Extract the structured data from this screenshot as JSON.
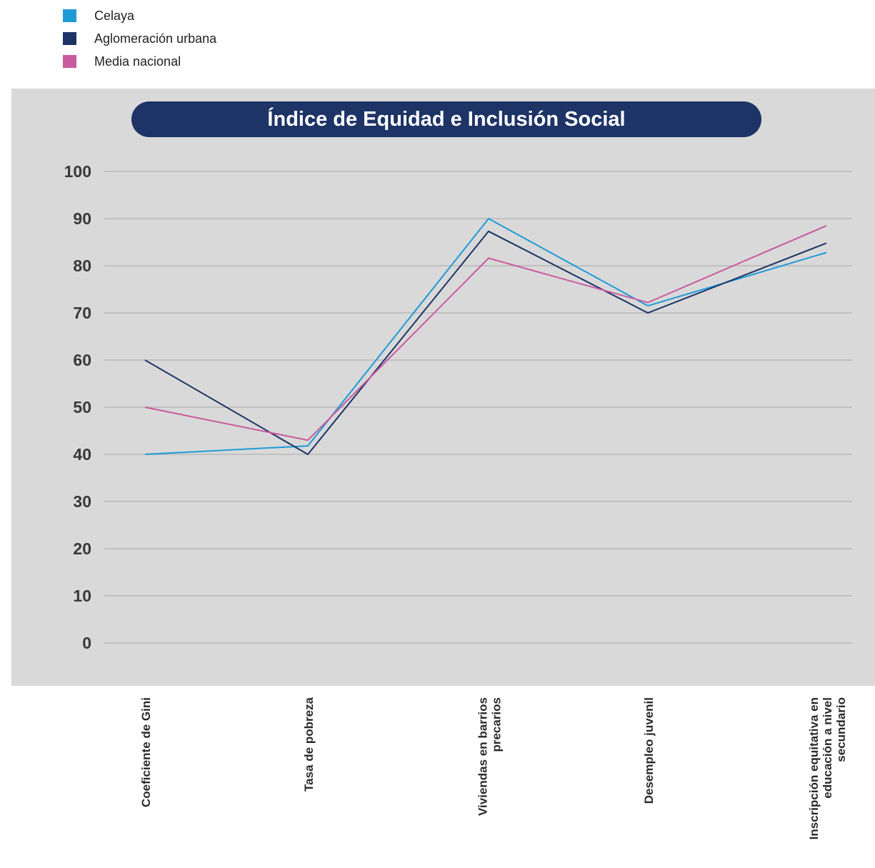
{
  "chart_data": {
    "type": "line",
    "title": "Índice de Equidad e Inclusión Social",
    "categories": [
      [
        "Coeficiente de Gini"
      ],
      [
        "Tasa de pobreza"
      ],
      [
        "Viviendas en barrios",
        "precarios"
      ],
      [
        "Desempleo juvenil"
      ],
      [
        "Inscripción equitativa en",
        "educación a nivel",
        "secundario"
      ]
    ],
    "series": [
      {
        "name": "Celaya",
        "color": "#1e9bd7",
        "values": [
          40,
          41.8,
          90,
          71.5,
          82.8
        ]
      },
      {
        "name": "Aglomeración urbana",
        "color": "#1e3466",
        "values": [
          60,
          40,
          87.3,
          70,
          84.8
        ]
      },
      {
        "name": "Media nacional",
        "color": "#c95a9e",
        "values": [
          50,
          43,
          81.6,
          72.2,
          88.5
        ]
      }
    ],
    "ylim": [
      0,
      100
    ],
    "yticks": [
      0,
      10,
      20,
      30,
      40,
      50,
      60,
      70,
      80,
      90,
      100
    ],
    "grid": true,
    "legend_position": "top-left"
  }
}
